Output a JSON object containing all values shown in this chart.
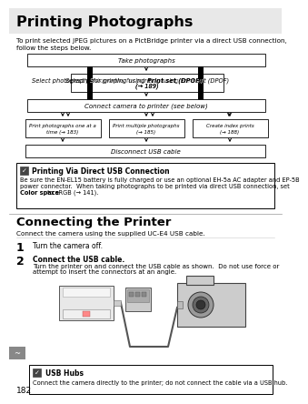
{
  "title": "Printing Photographs",
  "intro_line1": "To print selected JPEG pictures on a PictBridge printer via a direct USB connection,",
  "intro_line2": "follow the steps below.",
  "flow": {
    "box1_text": "Take photographs",
    "box2_text": "Select photographs for printing using ",
    "box2_bold": "Print set (DPOF)",
    "box2_ref": "(→ 189)",
    "box3_text": "Connect camera to printer (see below)",
    "box4a_text": "Print photographs one at a\ntime (→ 183)",
    "box4b_text": "Print multiple photographs\n(→ 185)",
    "box4c_text": "Create index prints\n(→ 188)",
    "box5_text": "Disconnect USB cable"
  },
  "note_title": "Printing Via Direct USB Connection",
  "note_body1": "Be sure the EN-EL15 battery is fully charged or use an optional EH-5a AC adapter and EP-5B",
  "note_body2": "power connector.  When taking photographs to be printed via direct USB connection, set",
  "note_body3_pre": "Color space",
  "note_body3_post": " to sRGB (→ 141).",
  "section2_title": "Connecting the Printer",
  "section2_intro": "Connect the camera using the supplied UC-E4 USB cable.",
  "step1_text": "Turn the camera off.",
  "step2_bold": "Connect the USB cable.",
  "step2_body1": "Turn the printer on and connect the USB cable as shown.  Do not use force or",
  "step2_body2": "attempt to insert the connectors at an angle.",
  "usb_note_title": "USB Hubs",
  "usb_note_body": "Connect the camera directly to the printer; do not connect the cable via a USB hub.",
  "page_num": "182"
}
